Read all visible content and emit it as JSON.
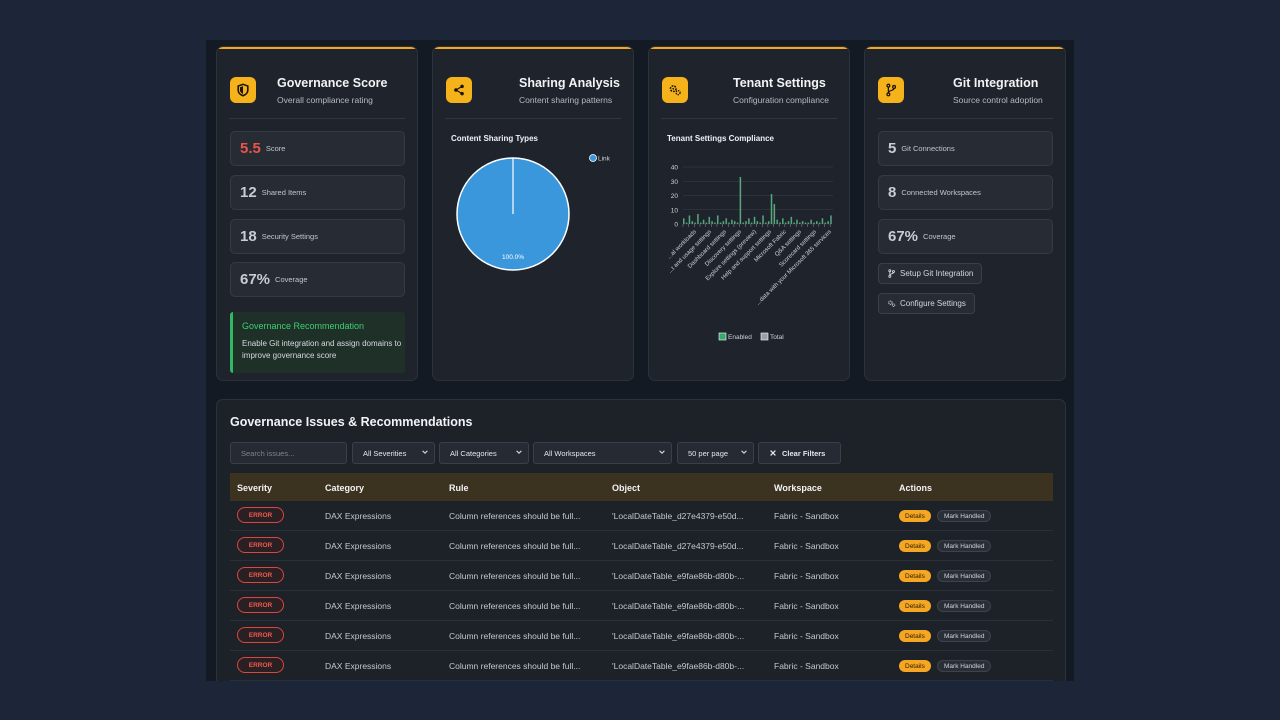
{
  "cards": {
    "governance": {
      "title": "Governance Score",
      "subtitle": "Overall compliance rating",
      "metrics": [
        {
          "value": "5.5",
          "label": "Score"
        },
        {
          "value": "12",
          "label": "Shared Items"
        },
        {
          "value": "18",
          "label": "Security Settings"
        },
        {
          "value": "67%",
          "label": "Coverage"
        }
      ],
      "recommendation": {
        "title": "Governance Recommendation",
        "body": "Enable Git integration and assign domains to improve governance score"
      }
    },
    "sharing": {
      "title": "Sharing Analysis",
      "subtitle": "Content sharing patterns",
      "chart_title": "Content Sharing Types"
    },
    "tenant": {
      "title": "Tenant Settings",
      "subtitle": "Configuration compliance",
      "chart_title": "Tenant Settings Compliance"
    },
    "git": {
      "title": "Git Integration",
      "subtitle": "Source control adoption",
      "metrics": [
        {
          "value": "5",
          "label": "Git Connections"
        },
        {
          "value": "8",
          "label": "Connected Workspaces"
        },
        {
          "value": "67%",
          "label": "Coverage"
        }
      ],
      "buttons": {
        "setup": "Setup Git Integration",
        "configure": "Configure Settings"
      }
    }
  },
  "chart_data": [
    {
      "type": "pie",
      "title": "Content Sharing Types",
      "labels": [
        "Link"
      ],
      "values": [
        100
      ],
      "data_labels": [
        "100.0%"
      ],
      "legend": [
        "Link"
      ],
      "legend_position": "top-right",
      "colors": [
        "#3a97dc"
      ]
    },
    {
      "type": "bar",
      "title": "Tenant Settings Compliance",
      "yticks": [
        "0",
        "10",
        "20",
        "30",
        "40"
      ],
      "ylim": [
        0,
        40
      ],
      "grid": true,
      "category_labels": [
        "...al workloads",
        "...t and usage settings",
        "Dashboard settings",
        "Discovery settings",
        "Explore settings (preview)",
        "Help and support settings",
        "Microsoft Fabric",
        "Q&A settings",
        "Scorecard settings",
        "...data with your Microsoft 365 services"
      ],
      "series": [
        {
          "name": "Enabled",
          "color": "#39a86a",
          "values": [
            4,
            1,
            6,
            2,
            1,
            7,
            1,
            3,
            1,
            5,
            2,
            1,
            6,
            1,
            2,
            4,
            1,
            3,
            2,
            1,
            33,
            1,
            2,
            4,
            1,
            5,
            2,
            1,
            6,
            1,
            2,
            21,
            14,
            3,
            1,
            4,
            1,
            2,
            5,
            1,
            3,
            1,
            2,
            1,
            1,
            3,
            1,
            2,
            1,
            4,
            1,
            2,
            6
          ]
        },
        {
          "name": "Total",
          "color": "#9aa0a8",
          "values": [
            4,
            1,
            6,
            2,
            1,
            7,
            1,
            3,
            1,
            5,
            2,
            1,
            6,
            1,
            2,
            4,
            1,
            3,
            2,
            1,
            33,
            1,
            2,
            4,
            1,
            5,
            2,
            1,
            6,
            1,
            2,
            21,
            14,
            3,
            1,
            4,
            1,
            2,
            5,
            1,
            3,
            1,
            2,
            1,
            1,
            3,
            1,
            2,
            1,
            4,
            1,
            2,
            6
          ]
        }
      ],
      "legend": [
        "Enabled",
        "Total"
      ],
      "legend_position": "bottom"
    }
  ],
  "issues": {
    "title": "Governance Issues & Recommendations",
    "filters": {
      "search_placeholder": "Search issues...",
      "severity": "All Severities",
      "category": "All Categories",
      "workspace": "All Workspaces",
      "per_page": "50 per page",
      "clear": "Clear Filters"
    },
    "columns": [
      "Severity",
      "Category",
      "Rule",
      "Object",
      "Workspace",
      "Actions"
    ],
    "actions": {
      "details": "Details",
      "handled": "Mark Handled"
    },
    "rows": [
      {
        "severity": "ERROR",
        "category": "DAX Expressions",
        "rule": "Column references should be full...",
        "object": "'LocalDateTable_d27e4379-e50d...",
        "workspace": "Fabric - Sandbox"
      },
      {
        "severity": "ERROR",
        "category": "DAX Expressions",
        "rule": "Column references should be full...",
        "object": "'LocalDateTable_d27e4379-e50d...",
        "workspace": "Fabric - Sandbox"
      },
      {
        "severity": "ERROR",
        "category": "DAX Expressions",
        "rule": "Column references should be full...",
        "object": "'LocalDateTable_e9fae86b-d80b-...",
        "workspace": "Fabric - Sandbox"
      },
      {
        "severity": "ERROR",
        "category": "DAX Expressions",
        "rule": "Column references should be full...",
        "object": "'LocalDateTable_e9fae86b-d80b-...",
        "workspace": "Fabric - Sandbox"
      },
      {
        "severity": "ERROR",
        "category": "DAX Expressions",
        "rule": "Column references should be full...",
        "object": "'LocalDateTable_e9fae86b-d80b-...",
        "workspace": "Fabric - Sandbox"
      },
      {
        "severity": "ERROR",
        "category": "DAX Expressions",
        "rule": "Column references should be full...",
        "object": "'LocalDateTable_e9fae86b-d80b-...",
        "workspace": "Fabric - Sandbox"
      }
    ]
  }
}
